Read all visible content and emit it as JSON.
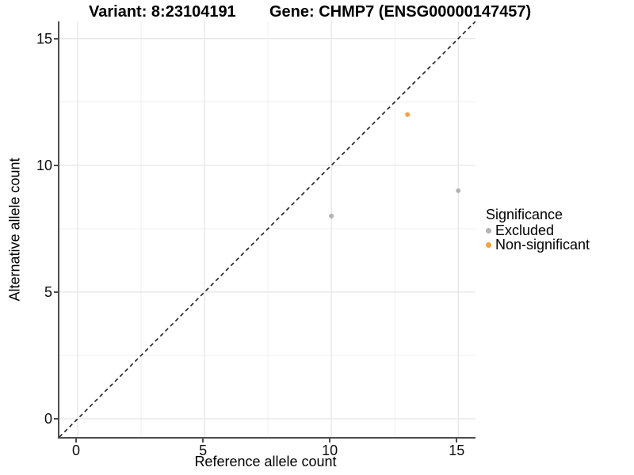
{
  "titles": {
    "variant": "Variant: 8:23104191",
    "gene": "Gene: CHMP7 (ENSG00000147457)"
  },
  "legend": {
    "title": "Significance",
    "items": [
      {
        "label": "Excluded",
        "color": "#b3b3b3"
      },
      {
        "label": "Non-significant",
        "color": "#f6a33c"
      }
    ]
  },
  "chart_data": {
    "type": "scatter",
    "title": "Variant: 8:23104191    Gene: CHMP7 (ENSG00000147457)",
    "xlabel": "Reference allele count",
    "ylabel": "Alternative allele count",
    "xlim": [
      -0.72,
      15.68
    ],
    "ylim": [
      -0.72,
      15.68
    ],
    "x_ticks": [
      0,
      5,
      10,
      15
    ],
    "y_ticks": [
      0,
      5,
      10,
      15
    ],
    "grid": {
      "major": [
        0,
        5,
        10,
        15
      ],
      "minor": [
        2.5,
        7.5,
        12.5
      ]
    },
    "series": [
      {
        "name": "Excluded",
        "color": "#b3b3b3",
        "points": [
          {
            "x": 10,
            "y": 8
          },
          {
            "x": 15,
            "y": 9
          }
        ]
      },
      {
        "name": "Non-significant",
        "color": "#f6a33c",
        "points": [
          {
            "x": 13,
            "y": 12
          }
        ]
      }
    ],
    "reference_line": {
      "type": "identity",
      "style": "dashed",
      "color": "#1f1f1f"
    },
    "legend_position": "right",
    "grid_on": true
  },
  "colors": {
    "axis_line": "#4d4d4d",
    "grid_major": "#e4e4e4",
    "grid_minor": "#f0f0f0",
    "text": "#000000",
    "background": "#ffffff"
  }
}
